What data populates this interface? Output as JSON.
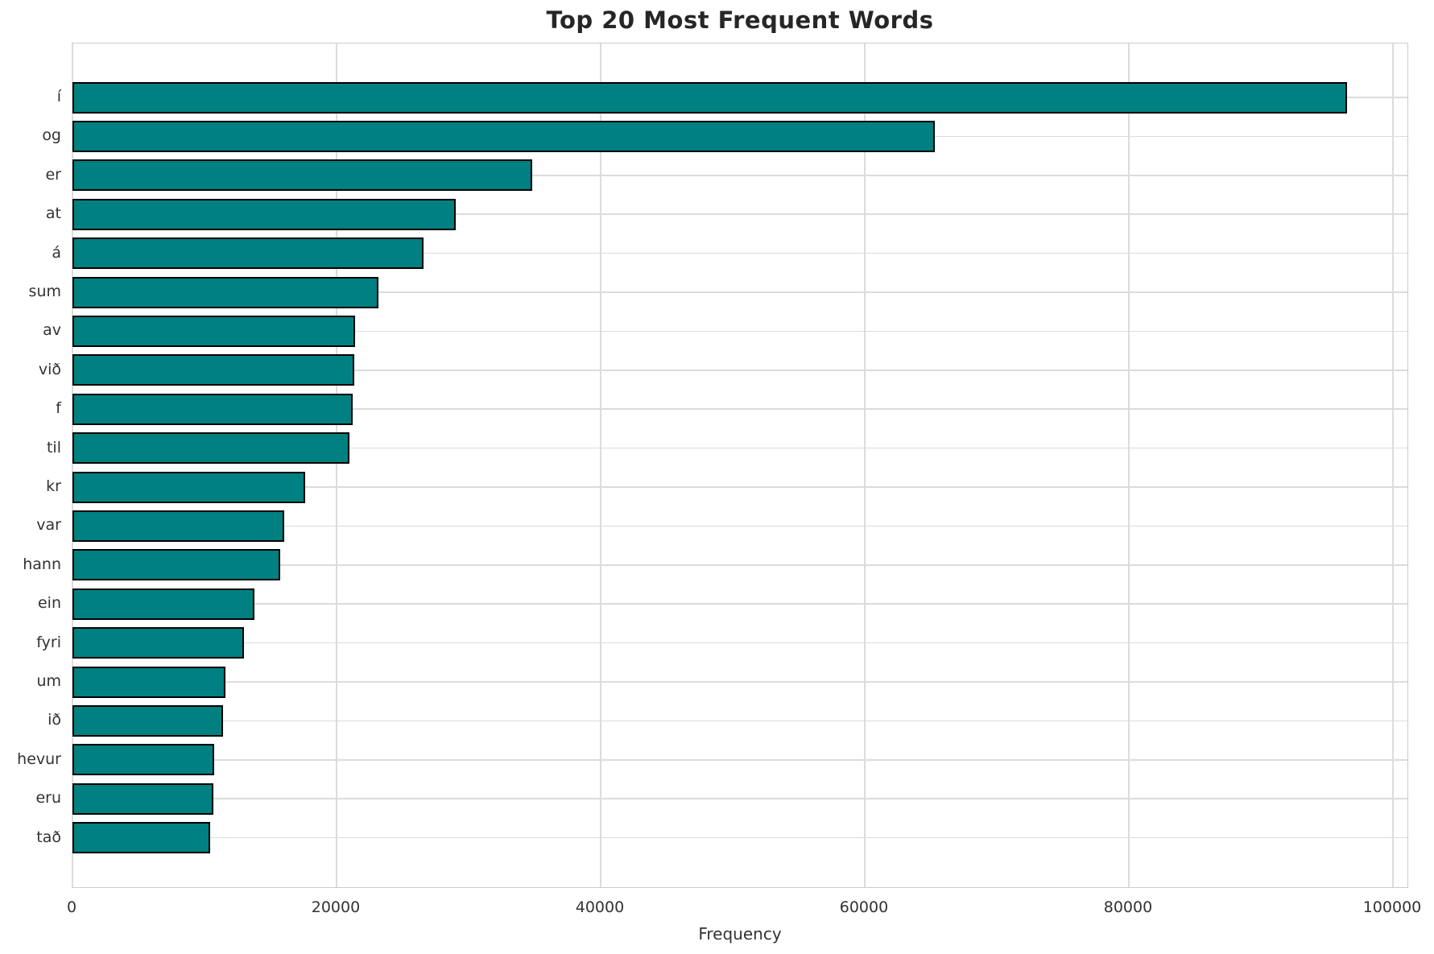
{
  "chart_data": {
    "type": "bar",
    "orientation": "horizontal",
    "title": "Top 20 Most Frequent Words",
    "xlabel": "Frequency",
    "ylabel": "",
    "categories": [
      "í",
      "og",
      "er",
      "at",
      "á",
      "sum",
      "av",
      "við",
      "f",
      "til",
      "kr",
      "var",
      "hann",
      "ein",
      "fyri",
      "um",
      "ið",
      "hevur",
      "eru",
      "tað"
    ],
    "values": [
      96500,
      65300,
      34800,
      29000,
      26600,
      23200,
      21400,
      21350,
      21250,
      21000,
      17650,
      16050,
      15750,
      13800,
      13000,
      11600,
      11400,
      10750,
      10650,
      10400
    ],
    "xticks": [
      0,
      20000,
      40000,
      60000,
      80000,
      100000
    ],
    "xlim": [
      0,
      101220
    ],
    "grid": true,
    "legend_position": "none",
    "bar_color": "#008080",
    "bar_edge_color": "#000000",
    "grid_color": "#dcdcdc",
    "spine_color": "#cccccc",
    "title_color": "#262626",
    "tick_label_color": "#333333"
  }
}
